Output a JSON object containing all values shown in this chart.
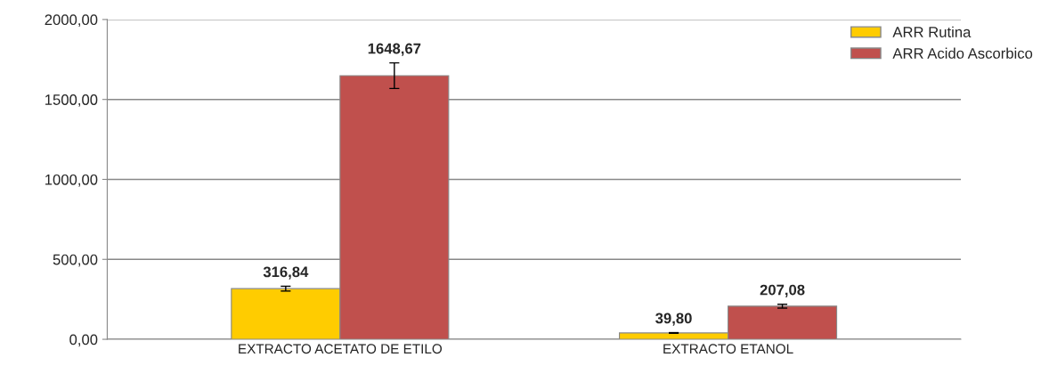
{
  "chart_data": {
    "type": "bar",
    "categories": [
      "EXTRACTO ACETATO DE ETILO",
      "EXTRACTO ETANOL"
    ],
    "series": [
      {
        "name": "ARR Rutina",
        "color": "#ffcc00",
        "values": [
          316.84,
          39.8
        ],
        "errors": [
          15,
          2
        ],
        "value_labels": [
          "316,84",
          "39,80"
        ]
      },
      {
        "name": "ARR Acido Ascorbico",
        "color": "#c0504d",
        "values": [
          1648.67,
          207.08
        ],
        "errors": [
          80,
          12
        ],
        "value_labels": [
          "1648,67",
          "207,08"
        ]
      }
    ],
    "ylim": [
      0,
      2000
    ],
    "yticks": [
      {
        "value": 0,
        "label": "0,00"
      },
      {
        "value": 500,
        "label": "500,00"
      },
      {
        "value": 1000,
        "label": "1000,00"
      },
      {
        "value": 1500,
        "label": "1500,00"
      },
      {
        "value": 2000,
        "label": "2000,00"
      }
    ],
    "grid": "y",
    "legend": "top right"
  }
}
